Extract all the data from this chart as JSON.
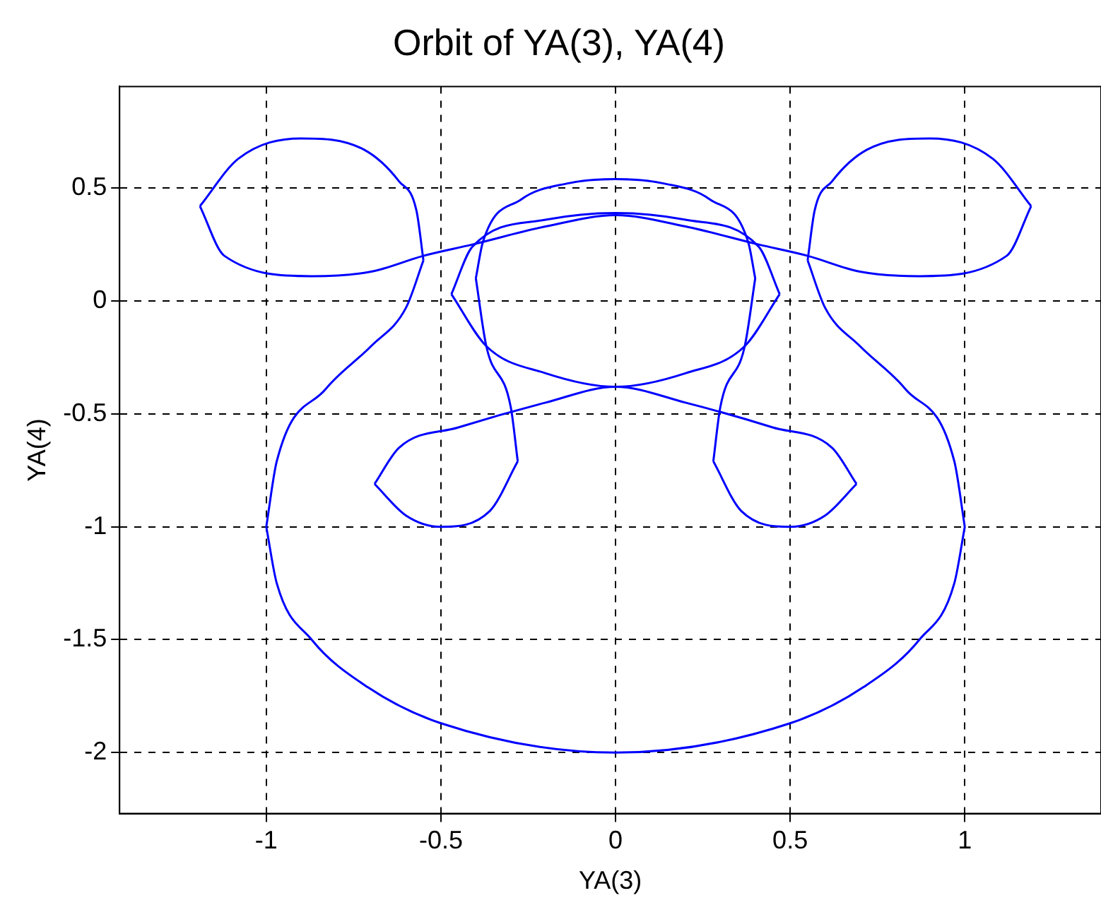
{
  "chart_data": {
    "type": "line",
    "title": "Orbit of YA(3), YA(4)",
    "xlabel": "YA(3)",
    "ylabel": "YA(4)",
    "xlim": [
      -1.42,
      1.39
    ],
    "ylim": [
      -2.27,
      0.95
    ],
    "xticks": [
      -1,
      -0.5,
      0,
      0.5,
      1
    ],
    "yticks": [
      -2,
      -1.5,
      -1,
      -0.5,
      0,
      0.5
    ],
    "grid": true,
    "legend": false,
    "marker": "none",
    "line_style": "solid",
    "series": [
      {
        "color": "#0000ff",
        "x": [
          -1,
          -0.97,
          -0.87,
          -0.71,
          -0.5,
          0,
          0.5,
          0.71,
          0.87,
          0.97,
          1
        ],
        "values": [
          -1,
          -1.25,
          -1.5,
          -1.71,
          -1.87,
          -2,
          -1.87,
          -1.71,
          -1.5,
          -1.25,
          -1
        ]
      },
      {
        "color": "#0000ff",
        "x": [
          0.55,
          0.6,
          0.7,
          0.83,
          0.97,
          1
        ],
        "values": [
          0.18,
          -0.03,
          -0.2,
          -0.39,
          -0.71,
          -1
        ]
      },
      {
        "color": "#0000ff",
        "x": [
          0.55,
          0.57,
          0.62,
          0.72,
          0.9,
          1.08,
          1.19
        ],
        "values": [
          0.18,
          0.4,
          0.53,
          0.67,
          0.72,
          0.63,
          0.42
        ]
      },
      {
        "color": "#0000ff",
        "x": [
          -1.19,
          -1.12,
          -0.87,
          -0.7,
          -0.55,
          -0.41,
          -0.2,
          0,
          0.2,
          0.41,
          0.55,
          0.7,
          0.87,
          1.12,
          1.19
        ],
        "values": [
          0.42,
          0.2,
          0.11,
          0.13,
          0.2,
          0.25,
          0.33,
          0.38,
          0.33,
          0.25,
          0.2,
          0.13,
          0.11,
          0.2,
          0.42
        ]
      },
      {
        "color": "#0000ff",
        "x": [
          -1.19,
          -1.08,
          -0.9,
          -0.72,
          -0.62,
          -0.57,
          -0.55
        ],
        "values": [
          0.42,
          0.63,
          0.72,
          0.67,
          0.53,
          0.4,
          0.18
        ]
      },
      {
        "color": "#0000ff",
        "x": [
          -1,
          -0.97,
          -0.83,
          -0.7,
          -0.6,
          -0.55
        ],
        "values": [
          -1,
          -0.71,
          -0.39,
          -0.2,
          -0.03,
          0.18
        ]
      },
      {
        "color": "#0000ff",
        "x": [
          -0.69,
          -0.6,
          -0.5,
          -0.36,
          -0.28
        ],
        "values": [
          -0.81,
          -0.95,
          -1,
          -0.93,
          -0.71
        ]
      },
      {
        "color": "#0000ff",
        "x": [
          -0.69,
          -0.62,
          -0.45,
          -0.2,
          0,
          0.2,
          0.45,
          0.62,
          0.69
        ],
        "values": [
          -0.81,
          -0.65,
          -0.56,
          -0.45,
          -0.38,
          -0.45,
          -0.56,
          -0.65,
          -0.81
        ]
      },
      {
        "color": "#0000ff",
        "x": [
          -0.4,
          -0.37,
          -0.3,
          -0.28
        ],
        "values": [
          0.1,
          -0.2,
          -0.47,
          -0.71
        ]
      },
      {
        "color": "#0000ff",
        "x": [
          -0.4,
          -0.38,
          -0.27,
          -0.14,
          0,
          0.14,
          0.27,
          0.38,
          0.4
        ],
        "values": [
          0.1,
          0.26,
          0.45,
          0.52,
          0.54,
          0.52,
          0.45,
          0.26,
          0.1
        ]
      },
      {
        "color": "#0000ff",
        "x": [
          0.28,
          0.3,
          0.37,
          0.4
        ],
        "values": [
          -0.71,
          -0.47,
          -0.2,
          0.1
        ]
      },
      {
        "color": "#0000ff",
        "x": [
          0.28,
          0.36,
          0.5,
          0.6,
          0.69
        ],
        "values": [
          -0.71,
          -0.93,
          -1,
          -0.95,
          -0.81
        ]
      },
      {
        "color": "#0000ff",
        "x": [
          -0.47,
          -0.41,
          -0.2,
          0,
          0.2,
          0.41,
          0.47
        ],
        "values": [
          0.03,
          0.24,
          0.36,
          0.39,
          0.36,
          0.24,
          0.03
        ]
      },
      {
        "color": "#0000ff",
        "x": [
          -0.47,
          -0.37,
          -0.2,
          0,
          0.2,
          0.37,
          0.47
        ],
        "values": [
          0.03,
          -0.2,
          -0.32,
          -0.38,
          -0.32,
          -0.2,
          0.03
        ]
      }
    ]
  }
}
